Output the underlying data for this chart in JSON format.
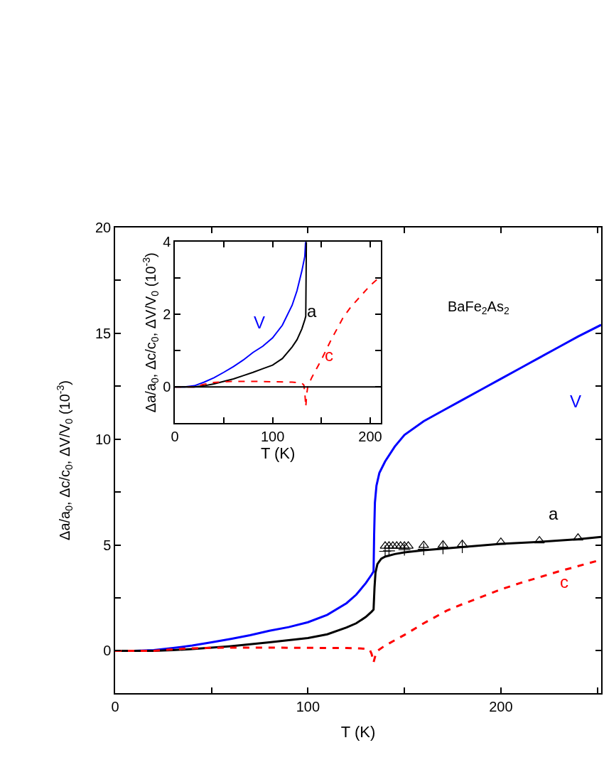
{
  "chart_data": [
    {
      "type": "line",
      "xlabel": "T (K)",
      "ylabel": "Δa/a$_{0}$, Δc/c$_{0}$, ΔV/V$_{0}$ (10$^{-3}$)",
      "xlim": [
        0,
        252
      ],
      "ylim": [
        -2,
        20
      ],
      "xticks": [
        0,
        {
          "value": 50,
          "label": null
        },
        100,
        {
          "value": 150,
          "label": null
        },
        200,
        {
          "value": 250,
          "label": null
        }
      ],
      "yticks": [
        0,
        {
          "value": 2.5,
          "label": null
        },
        5,
        {
          "value": 7.5,
          "label": null
        },
        10,
        {
          "value": 12.5,
          "label": null
        },
        15,
        {
          "value": 17.5,
          "label": null
        },
        20
      ],
      "legend": false,
      "annotations": [
        "BaFe$_{2}$As$_{2}$"
      ],
      "series": [
        {
          "name": "V",
          "color": "#0000ff",
          "line_style": "solid",
          "x": [
            0,
            10,
            20,
            30,
            40,
            50,
            60,
            70,
            80,
            90,
            100,
            110,
            120,
            125,
            130,
            133,
            134,
            134.3,
            134.7,
            135.5,
            137,
            140,
            145,
            150,
            160,
            170,
            180,
            190,
            200,
            210,
            220,
            230,
            240,
            252
          ],
          "values": [
            0,
            0,
            0.03,
            0.13,
            0.25,
            0.4,
            0.56,
            0.74,
            0.95,
            1.12,
            1.35,
            1.7,
            2.25,
            2.65,
            3.2,
            3.6,
            3.75,
            5.5,
            7.0,
            7.8,
            8.4,
            8.95,
            9.65,
            10.2,
            10.85,
            11.35,
            11.85,
            12.35,
            12.85,
            13.35,
            13.85,
            14.35,
            14.85,
            15.4
          ]
        },
        {
          "name": "a",
          "color": "#000000",
          "line_style": "solid",
          "x": [
            0,
            10,
            20,
            30,
            40,
            50,
            60,
            70,
            80,
            90,
            100,
            110,
            120,
            125,
            130,
            133,
            134,
            134.5,
            135,
            136,
            138,
            140,
            145,
            150,
            160,
            180,
            200,
            220,
            240,
            252
          ],
          "values": [
            0,
            0,
            0,
            0.03,
            0.08,
            0.15,
            0.22,
            0.31,
            0.4,
            0.5,
            0.6,
            0.78,
            1.1,
            1.3,
            1.6,
            1.85,
            1.95,
            3.0,
            3.7,
            4.1,
            4.35,
            4.45,
            4.57,
            4.65,
            4.75,
            4.9,
            5.05,
            5.15,
            5.27,
            5.38
          ]
        },
        {
          "name": "c",
          "color": "#ff0000",
          "line_style": "dashed",
          "x": [
            0,
            10,
            20,
            30,
            40,
            50,
            60,
            80,
            100,
            120,
            125,
            130,
            132,
            133,
            134,
            135,
            136,
            140,
            145,
            150,
            160,
            172,
            180,
            200,
            210,
            230,
            250
          ],
          "values": [
            0,
            0,
            0,
            0.07,
            0.12,
            0.14,
            0.15,
            0.15,
            0.14,
            0.13,
            0.12,
            0.1,
            0.05,
            -0.15,
            -0.55,
            -0.2,
            0.0,
            0.25,
            0.5,
            0.75,
            1.3,
            1.9,
            2.2,
            2.9,
            3.2,
            3.75,
            4.25
          ]
        },
        {
          "type": "scatter",
          "marker": "triangle",
          "color": "#000000",
          "x": [
            140,
            142,
            144,
            146,
            148,
            150,
            152,
            160,
            170,
            180,
            200,
            220,
            240
          ],
          "values": [
            4.95,
            4.95,
            4.95,
            4.95,
            4.95,
            4.95,
            4.95,
            4.98,
            5.0,
            5.03,
            5.13,
            5.2,
            5.33
          ]
        },
        {
          "type": "scatter",
          "marker": "cross",
          "color": "#000000",
          "x": [
            140,
            142,
            150,
            160,
            170,
            180
          ],
          "values": [
            4.7,
            4.72,
            4.78,
            4.8,
            4.85,
            4.9
          ]
        }
      ]
    },
    {
      "type": "line",
      "xlabel": "T (K)",
      "ylabel": "Δa/a$_{0}$, Δc/c$_{0}$, ΔV/V$_{0}$ (10$^{-3}$)",
      "xlim": [
        0,
        211
      ],
      "ylim": [
        -1,
        4
      ],
      "xticks": [
        0,
        {
          "value": 50,
          "label": null
        },
        100,
        {
          "value": 150,
          "label": null
        },
        200
      ],
      "yticks": [
        0,
        {
          "value": 1,
          "label": null
        },
        2,
        {
          "value": 3,
          "label": null
        },
        4
      ],
      "legend": false,
      "ref_lines": [
        {
          "axis": "y",
          "value": 0,
          "color": "#000000",
          "line_style": "solid"
        }
      ],
      "series": [
        {
          "name": "V",
          "color": "#0000ff",
          "line_style": "solid",
          "x": [
            0,
            10,
            20,
            30,
            40,
            50,
            60,
            70,
            80,
            90,
            100,
            110,
            120,
            125,
            130,
            133,
            133.8
          ],
          "values": [
            0,
            0,
            0.03,
            0.13,
            0.25,
            0.4,
            0.56,
            0.74,
            0.95,
            1.12,
            1.35,
            1.7,
            2.25,
            2.65,
            3.2,
            3.6,
            4.0
          ]
        },
        {
          "name": "a",
          "color": "#000000",
          "line_style": "solid",
          "x": [
            0,
            10,
            20,
            30,
            40,
            50,
            60,
            70,
            80,
            90,
            100,
            110,
            120,
            125,
            130,
            133,
            134,
            134.6
          ],
          "values": [
            0,
            0,
            0,
            0.03,
            0.08,
            0.15,
            0.22,
            0.31,
            0.4,
            0.5,
            0.6,
            0.78,
            1.1,
            1.3,
            1.6,
            1.85,
            1.95,
            4.0
          ]
        },
        {
          "name": "c",
          "color": "#ff0000",
          "line_style": "dashed",
          "x": [
            0,
            10,
            20,
            30,
            40,
            50,
            60,
            80,
            100,
            120,
            125,
            130,
            132,
            133,
            134,
            135,
            136,
            140,
            145,
            150,
            160,
            172,
            180,
            200,
            211
          ],
          "values": [
            0,
            0,
            0,
            0.07,
            0.12,
            0.14,
            0.15,
            0.15,
            0.14,
            0.13,
            0.12,
            0.1,
            0.05,
            -0.15,
            -0.55,
            -0.2,
            0.0,
            0.25,
            0.5,
            0.75,
            1.3,
            1.9,
            2.2,
            2.8,
            3.06
          ]
        }
      ]
    }
  ]
}
